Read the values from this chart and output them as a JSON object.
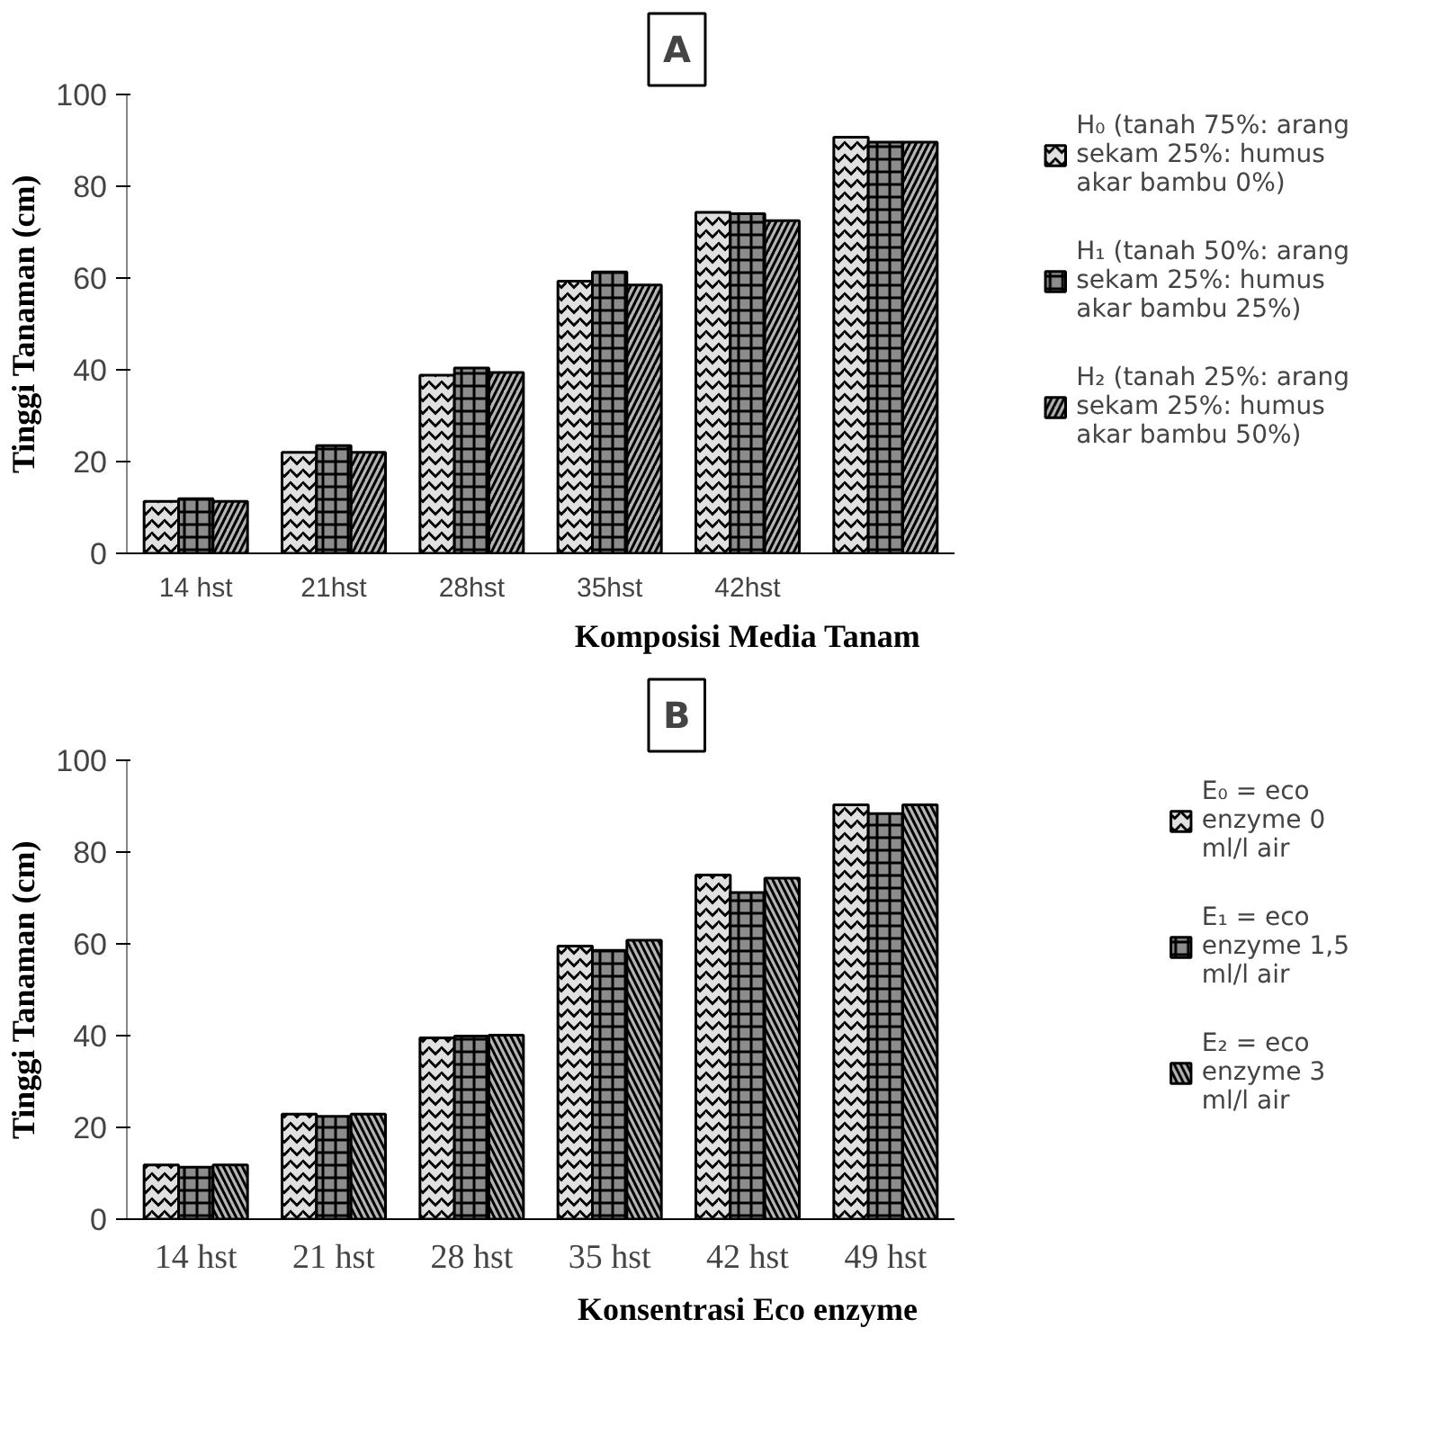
{
  "chart_data": [
    {
      "type": "bar",
      "title": "A",
      "xlabel": "Komposisi Media Tanam",
      "ylabel": "Tinggi Tanaman (cm)",
      "categories": [
        "14 hst",
        "21hst",
        "28hst",
        "35hst",
        "42hst",
        null
      ],
      "series": [
        {
          "name": "H₀ (tanah 75%: arang sekam 25%: humus akar bambu 0%)",
          "color": "#e0e0e0",
          "values": [
            11.3,
            22,
            38.8,
            59.3,
            74.3,
            90.7
          ]
        },
        {
          "name": "H₁ (tanah 50%: arang sekam 25%: humus akar bambu 25%)",
          "color": "#8c8c8c",
          "values": [
            11.9,
            23.5,
            40.4,
            61.3,
            74,
            89.6
          ]
        },
        {
          "name": "H₂ (tanah 25%: arang sekam 25%: humus akar bambu 50%)",
          "color": "#b4b4b4",
          "values": [
            11.3,
            22,
            39.4,
            58.5,
            72.5,
            89.6
          ]
        }
      ],
      "ylim": [
        0,
        100
      ],
      "yticks": [
        0,
        20,
        40,
        60,
        80,
        100
      ],
      "grid": false,
      "legend": "right"
    },
    {
      "type": "bar",
      "title": "B",
      "xlabel": "Konsentrasi Eco enzyme",
      "ylabel": "Tinggi Tanaman (cm)",
      "categories": [
        "14 hst",
        "21 hst",
        "28 hst",
        "35 hst",
        "42 hst",
        "49 hst"
      ],
      "series": [
        {
          "name": "E₀ = eco enzyme 0 ml/l air",
          "color": "#e0e0e0",
          "values": [
            11.8,
            22.9,
            39.5,
            59.5,
            75,
            90.3
          ]
        },
        {
          "name": "E₁ = eco enzyme 1,5 ml/l air",
          "color": "#8c8c8c",
          "values": [
            11.3,
            22.4,
            39.9,
            58.6,
            71.2,
            88.4
          ]
        },
        {
          "name": "E₂ = eco enzyme 3 ml/l air",
          "color": "#b4b4b4",
          "values": [
            11.8,
            22.9,
            40.1,
            60.8,
            74.3,
            90.3
          ]
        }
      ],
      "ylim": [
        0,
        100
      ],
      "yticks": [
        0,
        20,
        40,
        60,
        80,
        100
      ],
      "grid": false,
      "legend": "right"
    }
  ]
}
